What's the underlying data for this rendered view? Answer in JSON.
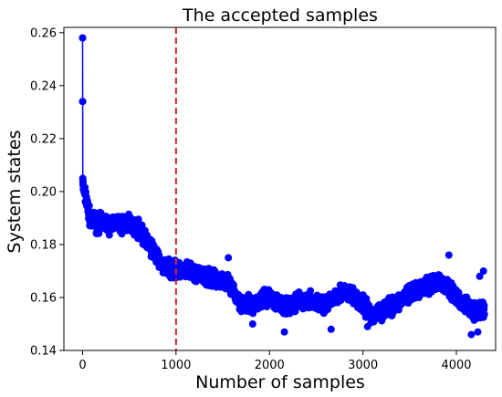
{
  "chart_data": {
    "type": "scatter",
    "title": "The accepted samples",
    "xlabel": "Number of samples",
    "ylabel": "System states",
    "xlim": [
      -200,
      4420
    ],
    "ylim": [
      0.14,
      0.262
    ],
    "xticks": [
      0,
      1000,
      2000,
      3000,
      4000
    ],
    "yticks": [
      0.14,
      0.16,
      0.18,
      0.2,
      0.22,
      0.24,
      0.26
    ],
    "tick_decimals": 2,
    "grid": false,
    "series_color": "#0000ff",
    "threshold_line": {
      "x": 1000,
      "color": "#d62728",
      "style": "dashed"
    },
    "total_samples": 4300,
    "trace": [
      [
        0,
        0.258
      ],
      [
        1,
        0.234
      ],
      [
        2,
        0.205
      ],
      [
        5,
        0.203
      ],
      [
        10,
        0.201
      ],
      [
        25,
        0.199
      ],
      [
        40,
        0.197
      ],
      [
        60,
        0.193
      ],
      [
        80,
        0.19
      ],
      [
        100,
        0.188
      ],
      [
        130,
        0.19
      ],
      [
        160,
        0.187
      ],
      [
        200,
        0.189
      ],
      [
        250,
        0.188
      ],
      [
        300,
        0.187
      ],
      [
        350,
        0.189
      ],
      [
        400,
        0.187
      ],
      [
        450,
        0.188
      ],
      [
        500,
        0.188
      ],
      [
        550,
        0.187
      ],
      [
        600,
        0.186
      ],
      [
        650,
        0.183
      ],
      [
        700,
        0.181
      ],
      [
        750,
        0.178
      ],
      [
        800,
        0.175
      ],
      [
        850,
        0.172
      ],
      [
        900,
        0.171
      ],
      [
        950,
        0.171
      ],
      [
        1000,
        0.17
      ],
      [
        1100,
        0.17
      ],
      [
        1200,
        0.169
      ],
      [
        1300,
        0.168
      ],
      [
        1400,
        0.167
      ],
      [
        1500,
        0.167
      ],
      [
        1550,
        0.165
      ],
      [
        1600,
        0.163
      ],
      [
        1650,
        0.16
      ],
      [
        1700,
        0.158
      ],
      [
        1750,
        0.157
      ],
      [
        1800,
        0.157
      ],
      [
        1850,
        0.158
      ],
      [
        1900,
        0.159
      ],
      [
        1950,
        0.16
      ],
      [
        2000,
        0.16
      ],
      [
        2100,
        0.158
      ],
      [
        2200,
        0.157
      ],
      [
        2300,
        0.158
      ],
      [
        2400,
        0.159
      ],
      [
        2500,
        0.158
      ],
      [
        2600,
        0.157
      ],
      [
        2700,
        0.161
      ],
      [
        2800,
        0.162
      ],
      [
        2900,
        0.16
      ],
      [
        3000,
        0.157
      ],
      [
        3100,
        0.153
      ],
      [
        3200,
        0.155
      ],
      [
        3300,
        0.157
      ],
      [
        3400,
        0.159
      ],
      [
        3500,
        0.161
      ],
      [
        3600,
        0.163
      ],
      [
        3700,
        0.165
      ],
      [
        3800,
        0.166
      ],
      [
        3900,
        0.164
      ],
      [
        4000,
        0.16
      ],
      [
        4100,
        0.157
      ],
      [
        4200,
        0.155
      ],
      [
        4300,
        0.156
      ]
    ],
    "noise_amplitude": 0.0045,
    "notable_points": [
      {
        "x": 0,
        "y": 0.258
      },
      {
        "x": 0,
        "y": 0.234
      },
      {
        "x": 2160,
        "y": 0.147
      },
      {
        "x": 3050,
        "y": 0.149
      },
      {
        "x": 3920,
        "y": 0.176
      },
      {
        "x": 4160,
        "y": 0.146
      },
      {
        "x": 4230,
        "y": 0.147
      },
      {
        "x": 4290,
        "y": 0.17
      },
      {
        "x": 4250,
        "y": 0.168
      },
      {
        "x": 1560,
        "y": 0.175
      },
      {
        "x": 1820,
        "y": 0.15
      },
      {
        "x": 2660,
        "y": 0.148
      }
    ]
  }
}
